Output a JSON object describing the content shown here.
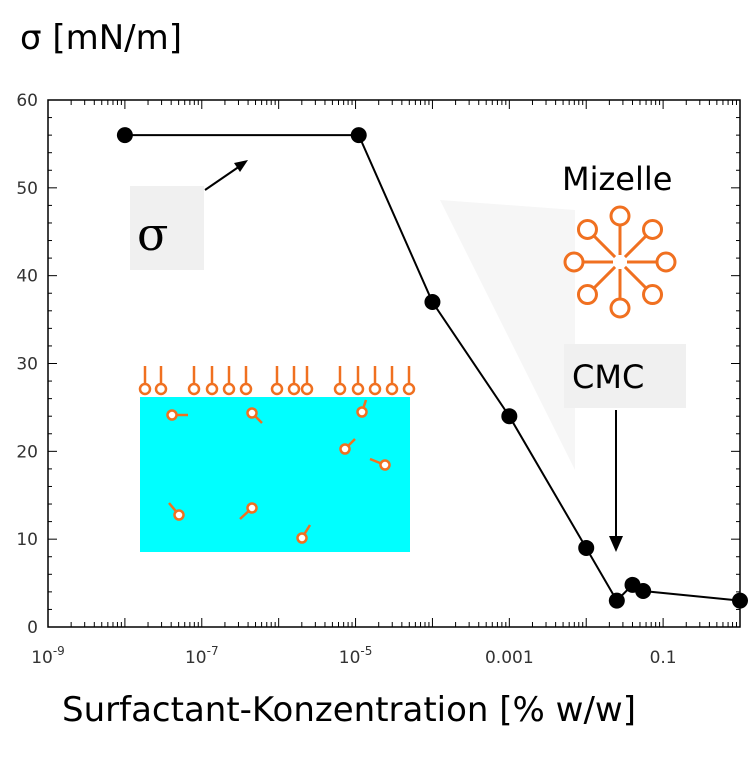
{
  "chart_data": {
    "type": "line",
    "y_axis_title": "σ [mN/m]",
    "x_axis_title": "Surfactant-Konzentration [% w/w]",
    "x_scale": "log",
    "xlim": [
      1e-09,
      1
    ],
    "ylim": [
      0,
      60
    ],
    "y_ticks": [
      0,
      10,
      20,
      30,
      40,
      50,
      60
    ],
    "y_tick_labels": [
      "0",
      "10",
      "20",
      "30",
      "40",
      "50",
      "60"
    ],
    "x_ticks": [
      1e-09,
      1e-07,
      1e-05,
      0.001,
      0.1
    ],
    "x_tick_labels": [
      {
        "base": "10",
        "exp": "-9"
      },
      {
        "base": "10",
        "exp": "-7"
      },
      {
        "base": "10",
        "exp": "-5"
      },
      {
        "base": "0.001",
        "exp": ""
      },
      {
        "base": "0.1",
        "exp": ""
      }
    ],
    "series": [
      {
        "color": "#000000",
        "points": [
          {
            "x": 1e-08,
            "y": 56
          },
          {
            "x": 1.1e-05,
            "y": 56
          },
          {
            "x": 0.0001,
            "y": 37
          },
          {
            "x": 0.001,
            "y": 24
          },
          {
            "x": 0.01,
            "y": 9
          },
          {
            "x": 0.025,
            "y": 3
          },
          {
            "x": 0.04,
            "y": 4.8
          },
          {
            "x": 0.055,
            "y": 4.1
          },
          {
            "x": 1,
            "y": 3
          }
        ]
      }
    ],
    "annotations": {
      "sigma": "σ",
      "mizelle": "Mizelle",
      "cmc": "CMC"
    },
    "colors": {
      "surfactant": "#f07020",
      "water": "#00ffff",
      "line": "#000000"
    }
  }
}
